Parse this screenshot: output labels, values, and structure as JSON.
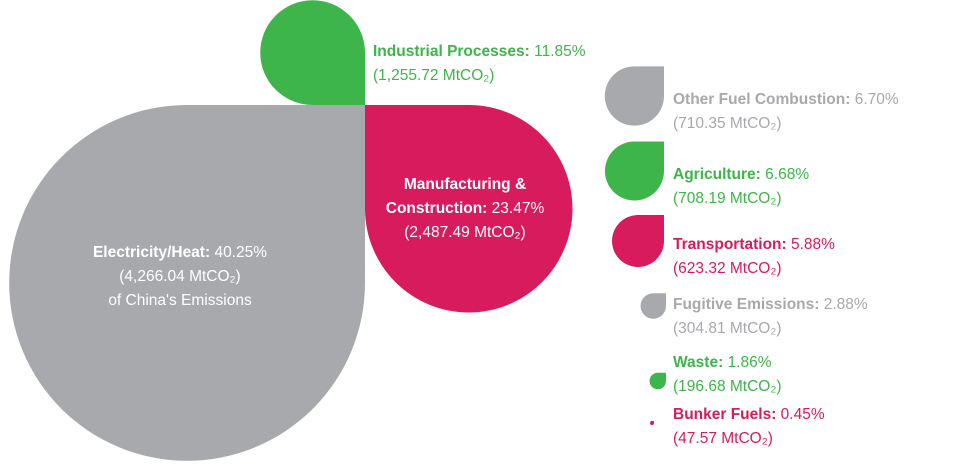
{
  "chart_data": {
    "type": "teardrop",
    "categories": [
      "Electricity/Heat:",
      "Manufacturing & Construction:",
      "Industrial Processes:",
      "Other Fuel Combustion:",
      "Agriculture:",
      "Transportation:",
      "Fugitive Emissions:",
      "Waste:",
      "Bunker Fuels:"
    ],
    "values": [
      40.25,
      23.47,
      11.85,
      6.7,
      6.68,
      5.88,
      2.88,
      1.86,
      0.45
    ],
    "value_labels": [
      "40.25%",
      "23.47%",
      "11.85%",
      "6.70%",
      "6.68%",
      "5.88%",
      "2.88%",
      "1.86%",
      "0.45%"
    ],
    "emissions": [
      4266.04,
      2487.49,
      1255.72,
      710.35,
      708.19,
      623.32,
      304.81,
      196.68,
      47.57
    ],
    "emission_labels": [
      "(4,266.04 MtCO₂)",
      "(2,487.49 MtCO₂)",
      "(1,255.72 MtCO₂)",
      "(710.35 MtCO₂)",
      "(708.19 MtCO₂)",
      "(623.32 MtCO₂)",
      "(304.81 MtCO₂)",
      "(196.68 MtCO₂)",
      "(47.57 MtCO₂)"
    ],
    "colors": [
      "#a7a9ac",
      "#d81b5c",
      "#3db54a",
      "#a7a9ac",
      "#3db54a",
      "#d81b5c",
      "#a7a9ac",
      "#3db54a",
      "#d81b5c"
    ],
    "annotation": "of China's Emissions"
  }
}
